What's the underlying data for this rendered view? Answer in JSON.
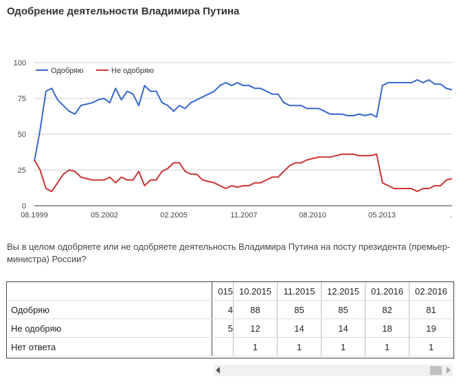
{
  "page": {
    "title": "Одобрение деятельности Владимира Путина",
    "question": "Вы в целом одобряете или не одобряете деятельность Владимира Путина на посту президента (премьер-министра) России?"
  },
  "chart_data": {
    "type": "line",
    "title": "Одобрение деятельности Владимира Путина",
    "xlabel": "",
    "ylabel": "",
    "ylim": [
      0,
      100
    ],
    "yticks": [
      0,
      25,
      50,
      75,
      100
    ],
    "xticks": [
      "08.1999",
      "05.2002",
      "02.2005",
      "11.2007",
      "08.2010",
      "05.2013",
      "."
    ],
    "legend": "top-left",
    "grid": true,
    "x": [
      "08.1999",
      "10.1999",
      "12.1999",
      "02.2000",
      "04.2000",
      "06.2000",
      "08.2000",
      "10.2000",
      "12.2000",
      "03.2001",
      "06.2001",
      "09.2001",
      "12.2001",
      "05.2002",
      "08.2002",
      "11.2002",
      "02.2003",
      "05.2003",
      "08.2003",
      "11.2003",
      "02.2004",
      "05.2004",
      "08.2004",
      "11.2004",
      "02.2005",
      "05.2005",
      "08.2005",
      "11.2005",
      "03.2006",
      "06.2006",
      "09.2006",
      "12.2006",
      "03.2007",
      "06.2007",
      "09.2007",
      "11.2007",
      "02.2008",
      "05.2008",
      "08.2008",
      "11.2008",
      "02.2009",
      "05.2009",
      "08.2009",
      "11.2009",
      "02.2010",
      "05.2010",
      "08.2010",
      "11.2010",
      "02.2011",
      "05.2011",
      "08.2011",
      "11.2011",
      "02.2012",
      "05.2012",
      "08.2012",
      "11.2012",
      "02.2013",
      "05.2013",
      "08.2013",
      "11.2013",
      "02.2014",
      "03.2014",
      "05.2014",
      "08.2014",
      "11.2014",
      "02.2015",
      "05.2015",
      "08.2015",
      "10.2015",
      "11.2015",
      "12.2015",
      "01.2016",
      "02.2016"
    ],
    "series": [
      {
        "name": "Одобряю",
        "color": "#3366cc",
        "values": [
          31,
          53,
          80,
          82,
          74,
          70,
          66,
          64,
          70,
          71,
          72,
          74,
          75,
          72,
          82,
          74,
          80,
          78,
          70,
          84,
          80,
          80,
          72,
          70,
          66,
          70,
          68,
          72,
          74,
          76,
          78,
          80,
          84,
          86,
          84,
          86,
          84,
          84,
          82,
          82,
          80,
          78,
          78,
          72,
          70,
          70,
          70,
          68,
          68,
          68,
          66,
          64,
          64,
          64,
          63,
          63,
          64,
          63,
          64,
          62,
          84,
          86,
          86,
          86,
          86,
          86,
          88,
          86,
          88,
          85,
          85,
          82,
          81
        ]
      },
      {
        "name": "Не одобряю",
        "color": "#cc3333",
        "values": [
          32,
          25,
          12,
          10,
          16,
          22,
          25,
          24,
          20,
          19,
          18,
          18,
          18,
          20,
          16,
          20,
          18,
          18,
          24,
          14,
          18,
          18,
          24,
          26,
          30,
          30,
          24,
          22,
          22,
          18,
          17,
          16,
          14,
          12,
          14,
          13,
          14,
          14,
          16,
          16,
          18,
          20,
          20,
          24,
          28,
          30,
          30,
          32,
          33,
          34,
          34,
          34,
          35,
          36,
          36,
          36,
          35,
          35,
          35,
          36,
          16,
          14,
          12,
          12,
          12,
          12,
          10,
          12,
          12,
          14,
          14,
          18,
          19
        ]
      }
    ]
  },
  "table": {
    "columns": [
      "015",
      "10.2015",
      "11.2015",
      "12.2015",
      "01.2016",
      "02.2016"
    ],
    "rows": [
      {
        "label": "Одобряю",
        "values": [
          "4",
          "88",
          "85",
          "85",
          "82",
          "81"
        ]
      },
      {
        "label": "Не одобряю",
        "values": [
          "5",
          "12",
          "14",
          "14",
          "18",
          "19"
        ]
      },
      {
        "label": "Нет ответа",
        "values": [
          "",
          "1",
          "1",
          "1",
          "1",
          "1"
        ]
      }
    ]
  }
}
